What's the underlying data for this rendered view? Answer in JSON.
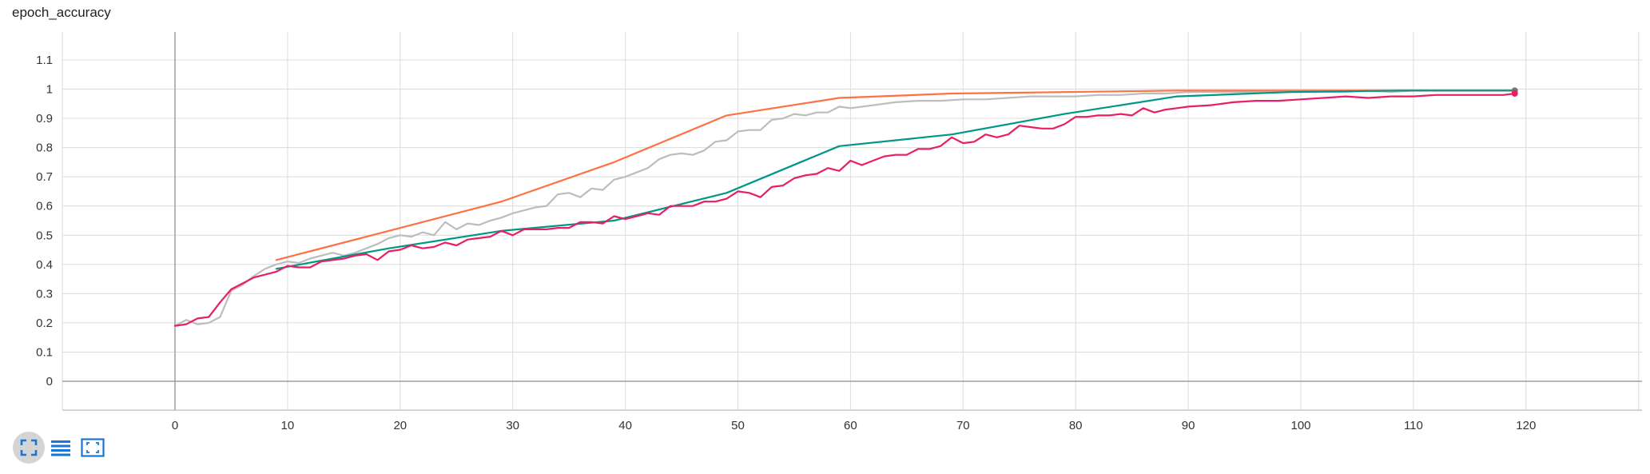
{
  "card": {
    "title": "epoch_accuracy"
  },
  "toolbar": {
    "buttons": [
      {
        "name": "fullscreen-button",
        "icon": "fullscreen-icon",
        "active": true
      },
      {
        "name": "toggle-y-log-button",
        "icon": "list-lines-icon",
        "active": false
      },
      {
        "name": "fit-domain-button",
        "icon": "fit-to-domain-icon",
        "active": false
      }
    ],
    "icon_color": "#1976d2"
  },
  "chart_data": {
    "type": "line",
    "title": "",
    "xlabel": "",
    "ylabel": "",
    "xlim": [
      -10,
      130
    ],
    "ylim": [
      -0.1,
      1.2
    ],
    "x_ticks": [
      0,
      10,
      20,
      30,
      40,
      50,
      60,
      70,
      80,
      90,
      100,
      110,
      120
    ],
    "y_ticks": [
      0,
      0.1,
      0.2,
      0.3,
      0.4,
      0.5,
      0.6,
      0.7,
      0.8,
      0.9,
      1,
      1.1
    ],
    "x_tick_labels": [
      "0",
      "10",
      "20",
      "30",
      "40",
      "50",
      "60",
      "70",
      "80",
      "90",
      "100",
      "110",
      "120"
    ],
    "y_tick_labels": [
      "0",
      "0.1",
      "0.2",
      "0.3",
      "0.4",
      "0.5",
      "0.6",
      "0.7",
      "0.8",
      "0.9",
      "1",
      "1.1"
    ],
    "grid": true,
    "series": [
      {
        "color": "#bdbdbd",
        "x": [
          0,
          1,
          2,
          3,
          4,
          5,
          6,
          7,
          8,
          9,
          10,
          11,
          12,
          13,
          14,
          15,
          16,
          17,
          18,
          19,
          20,
          21,
          22,
          23,
          24,
          25,
          26,
          27,
          28,
          29,
          30,
          31,
          32,
          33,
          34,
          35,
          36,
          37,
          38,
          39,
          40,
          41,
          42,
          43,
          44,
          45,
          46,
          47,
          48,
          49,
          50,
          51,
          52,
          53,
          54,
          55,
          56,
          57,
          58,
          59,
          60,
          62,
          64,
          66,
          68,
          70,
          72,
          74,
          76,
          78,
          80,
          82,
          84,
          86,
          88,
          90,
          92,
          94,
          96,
          98,
          100,
          102,
          104,
          106,
          108,
          110,
          112,
          114,
          116,
          118,
          119
        ],
        "values": [
          0.19,
          0.21,
          0.195,
          0.2,
          0.22,
          0.31,
          0.33,
          0.36,
          0.385,
          0.4,
          0.41,
          0.405,
          0.42,
          0.43,
          0.44,
          0.43,
          0.44,
          0.455,
          0.47,
          0.49,
          0.5,
          0.495,
          0.51,
          0.5,
          0.545,
          0.52,
          0.54,
          0.535,
          0.55,
          0.56,
          0.575,
          0.585,
          0.595,
          0.6,
          0.64,
          0.645,
          0.63,
          0.66,
          0.655,
          0.69,
          0.7,
          0.715,
          0.73,
          0.76,
          0.775,
          0.78,
          0.775,
          0.79,
          0.82,
          0.825,
          0.855,
          0.86,
          0.86,
          0.895,
          0.9,
          0.915,
          0.91,
          0.92,
          0.92,
          0.94,
          0.935,
          0.945,
          0.955,
          0.96,
          0.96,
          0.965,
          0.965,
          0.97,
          0.975,
          0.975,
          0.975,
          0.98,
          0.98,
          0.985,
          0.985,
          0.99,
          0.99,
          0.99,
          0.99,
          0.99,
          0.99,
          0.99,
          0.99,
          0.995,
          0.99,
          0.995,
          0.995,
          0.995,
          0.995,
          0.995,
          0.995
        ]
      },
      {
        "color": "#ff7043",
        "x": [
          9,
          19,
          29,
          39,
          49,
          59,
          69,
          79,
          89,
          99,
          109,
          119
        ],
        "values": [
          0.415,
          0.515,
          0.615,
          0.75,
          0.91,
          0.97,
          0.985,
          0.99,
          0.995,
          0.995,
          0.995,
          0.995
        ]
      },
      {
        "color": "#009688",
        "x": [
          9,
          19,
          29,
          39,
          49,
          59,
          69,
          79,
          89,
          99,
          109,
          119
        ],
        "values": [
          0.385,
          0.455,
          0.515,
          0.55,
          0.645,
          0.805,
          0.845,
          0.915,
          0.975,
          0.99,
          0.995,
          0.995
        ]
      },
      {
        "color": "#e91e63",
        "x": [
          0,
          1,
          2,
          3,
          4,
          5,
          6,
          7,
          8,
          9,
          10,
          11,
          12,
          13,
          14,
          15,
          16,
          17,
          18,
          19,
          20,
          21,
          22,
          23,
          24,
          25,
          26,
          27,
          28,
          29,
          30,
          31,
          32,
          33,
          34,
          35,
          36,
          37,
          38,
          39,
          40,
          41,
          42,
          43,
          44,
          45,
          46,
          47,
          48,
          49,
          50,
          51,
          52,
          53,
          54,
          55,
          56,
          57,
          58,
          59,
          60,
          61,
          62,
          63,
          64,
          65,
          66,
          67,
          68,
          69,
          70,
          71,
          72,
          73,
          74,
          75,
          76,
          77,
          78,
          79,
          80,
          81,
          82,
          83,
          84,
          85,
          86,
          87,
          88,
          89,
          90,
          92,
          94,
          96,
          98,
          100,
          102,
          104,
          106,
          108,
          110,
          112,
          114,
          116,
          118,
          119
        ],
        "values": [
          0.19,
          0.195,
          0.215,
          0.22,
          0.27,
          0.315,
          0.335,
          0.355,
          0.365,
          0.375,
          0.395,
          0.39,
          0.39,
          0.41,
          0.415,
          0.42,
          0.43,
          0.435,
          0.415,
          0.445,
          0.45,
          0.465,
          0.455,
          0.46,
          0.475,
          0.465,
          0.485,
          0.49,
          0.495,
          0.515,
          0.5,
          0.52,
          0.52,
          0.52,
          0.525,
          0.525,
          0.545,
          0.545,
          0.54,
          0.565,
          0.555,
          0.565,
          0.575,
          0.57,
          0.6,
          0.6,
          0.6,
          0.615,
          0.615,
          0.625,
          0.65,
          0.645,
          0.63,
          0.665,
          0.67,
          0.695,
          0.705,
          0.71,
          0.73,
          0.72,
          0.755,
          0.74,
          0.755,
          0.77,
          0.775,
          0.775,
          0.795,
          0.795,
          0.805,
          0.835,
          0.815,
          0.82,
          0.845,
          0.835,
          0.845,
          0.875,
          0.87,
          0.865,
          0.865,
          0.88,
          0.905,
          0.905,
          0.91,
          0.91,
          0.915,
          0.91,
          0.935,
          0.92,
          0.93,
          0.935,
          0.94,
          0.945,
          0.955,
          0.96,
          0.96,
          0.965,
          0.97,
          0.975,
          0.97,
          0.975,
          0.975,
          0.98,
          0.98,
          0.98,
          0.98,
          0.985
        ]
      }
    ]
  }
}
